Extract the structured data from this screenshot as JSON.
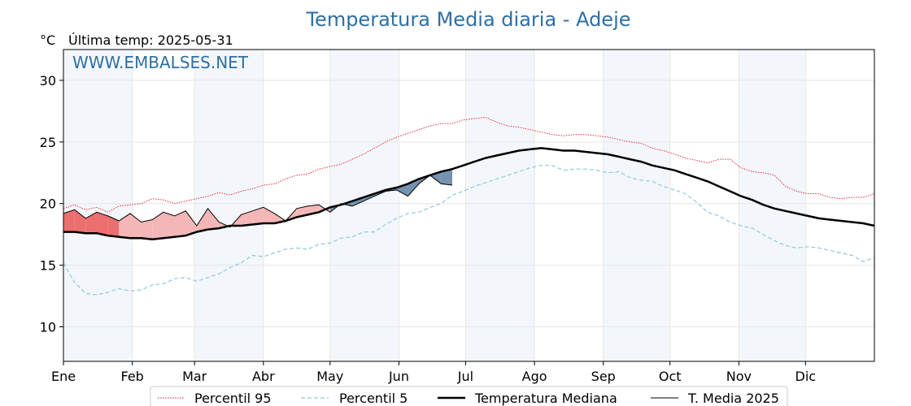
{
  "header": {
    "title": "Temperatura Media diaria - Adeje",
    "unit": "°C",
    "last_temp": "Última temp: 2025-05-31",
    "watermark": "WWW.EMBALSES.NET"
  },
  "colors": {
    "p95": "#e8161b",
    "p5": "#8ec9dd",
    "median": "#000000",
    "current": "#000000",
    "above_fill": "#f4b6b6",
    "above_fill_strong": "#ec6f6f",
    "below_fill": "#7393b0",
    "month_band": "#f3f7fb"
  },
  "chart_data": {
    "type": "line",
    "title": "Temperatura Media diaria - Adeje",
    "ylabel": "°C",
    "ylim": [
      7.2,
      32.5
    ],
    "yticks": [
      10,
      15,
      20,
      25,
      30
    ],
    "months": [
      "Ene",
      "Feb",
      "Mar",
      "Abr",
      "May",
      "Jun",
      "Jul",
      "Ago",
      "Sep",
      "Oct",
      "Nov",
      "Dic"
    ],
    "grid": true,
    "legend_position": "bottom",
    "x_note": "values are listed every 5 days (day-of-year 1,6,...,366)",
    "series": [
      {
        "name": "Percentil 95",
        "style": "dotted",
        "values": [
          19.6,
          19.9,
          19.5,
          19.7,
          19.3,
          19.8,
          19.9,
          20.0,
          20.4,
          20.3,
          20.0,
          20.2,
          20.4,
          20.6,
          20.9,
          20.7,
          21.0,
          21.2,
          21.5,
          21.6,
          22.0,
          22.3,
          22.4,
          22.8,
          23.0,
          23.2,
          23.6,
          24.0,
          24.5,
          25.0,
          25.4,
          25.7,
          26.0,
          26.3,
          26.5,
          26.5,
          26.8,
          26.9,
          27.0,
          26.6,
          26.3,
          26.2,
          26.0,
          25.8,
          25.6,
          25.5,
          25.6,
          25.6,
          25.5,
          25.4,
          25.2,
          25.0,
          24.9,
          24.5,
          24.3,
          24.0,
          23.7,
          23.5,
          23.3,
          23.6,
          23.6,
          22.9,
          22.6,
          22.5,
          22.3,
          21.4,
          21.0,
          20.8,
          20.8,
          20.5,
          20.4,
          20.5,
          20.5,
          20.8
        ]
      },
      {
        "name": "Percentil 5",
        "style": "dashed",
        "values": [
          15.2,
          13.6,
          12.7,
          12.6,
          12.8,
          13.1,
          12.9,
          13.0,
          13.4,
          13.5,
          13.9,
          14.0,
          13.7,
          14.0,
          14.3,
          14.8,
          15.2,
          15.8,
          15.7,
          16.0,
          16.3,
          16.4,
          16.3,
          16.7,
          16.8,
          17.2,
          17.3,
          17.7,
          17.7,
          18.3,
          18.8,
          19.2,
          19.3,
          19.7,
          20.0,
          20.7,
          21.0,
          21.4,
          21.7,
          22.0,
          22.3,
          22.6,
          22.9,
          23.1,
          23.1,
          22.7,
          22.8,
          22.8,
          22.7,
          22.5,
          22.6,
          22.1,
          21.9,
          21.8,
          21.4,
          21.1,
          20.8,
          20.1,
          19.3,
          19.0,
          18.5,
          18.2,
          18.0,
          17.5,
          17.0,
          16.6,
          16.4,
          16.5,
          16.4,
          16.2,
          16.0,
          15.8,
          15.3,
          15.6
        ]
      },
      {
        "name": "Temperatura Mediana",
        "style": "solid-thick",
        "values": [
          17.7,
          17.7,
          17.6,
          17.6,
          17.4,
          17.3,
          17.2,
          17.2,
          17.1,
          17.2,
          17.3,
          17.4,
          17.7,
          17.9,
          18.0,
          18.2,
          18.2,
          18.3,
          18.4,
          18.4,
          18.6,
          18.9,
          19.1,
          19.3,
          19.7,
          19.9,
          20.2,
          20.5,
          20.8,
          21.1,
          21.3,
          21.6,
          22.0,
          22.3,
          22.6,
          22.8,
          23.1,
          23.4,
          23.7,
          23.9,
          24.1,
          24.3,
          24.4,
          24.5,
          24.4,
          24.3,
          24.3,
          24.2,
          24.1,
          24.0,
          23.8,
          23.6,
          23.4,
          23.1,
          22.9,
          22.7,
          22.4,
          22.1,
          21.8,
          21.4,
          21.0,
          20.6,
          20.3,
          19.9,
          19.6,
          19.4,
          19.2,
          19.0,
          18.8,
          18.7,
          18.6,
          18.5,
          18.4,
          18.2
        ]
      },
      {
        "name": "T. Media 2025",
        "style": "solid-thin",
        "values": [
          19.2,
          19.5,
          18.8,
          19.3,
          19.0,
          18.6,
          19.2,
          18.5,
          18.7,
          19.3,
          19.0,
          19.4,
          18.2,
          19.6,
          18.5,
          18.1,
          19.1,
          19.4,
          19.7,
          19.2,
          18.6,
          19.6,
          19.8,
          19.9,
          19.3,
          20.0,
          19.8,
          20.2,
          20.6,
          21.0,
          21.1,
          20.6,
          21.6,
          22.3,
          21.6,
          21.5
        ]
      }
    ]
  },
  "legend": {
    "items": [
      {
        "label": "Percentil 95"
      },
      {
        "label": "Percentil 5"
      },
      {
        "label": "Temperatura Mediana"
      },
      {
        "label": "T. Media 2025"
      }
    ]
  }
}
